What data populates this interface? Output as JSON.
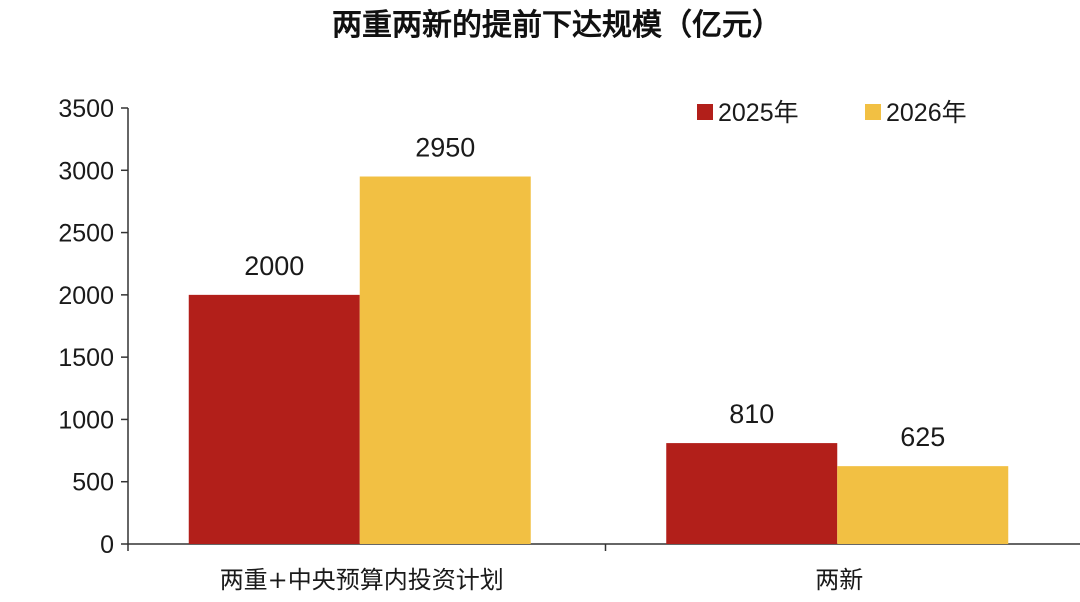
{
  "chart_data": {
    "type": "bar",
    "title": "两重两新的提前下达规模（亿元）",
    "categories": [
      "两重+中央预算内投资计划",
      "两新"
    ],
    "series": [
      {
        "name": "2025年",
        "values": [
          2000,
          810
        ],
        "color": "#b21f1a"
      },
      {
        "name": "2026年",
        "values": [
          2950,
          625
        ],
        "color": "#f2c043"
      }
    ],
    "ylim": [
      0,
      3500
    ],
    "yticks": [
      0,
      500,
      1000,
      1500,
      2000,
      2500,
      3000,
      3500
    ],
    "xlabel": "",
    "ylabel": "",
    "grid": false,
    "legend_position": "top-right"
  }
}
